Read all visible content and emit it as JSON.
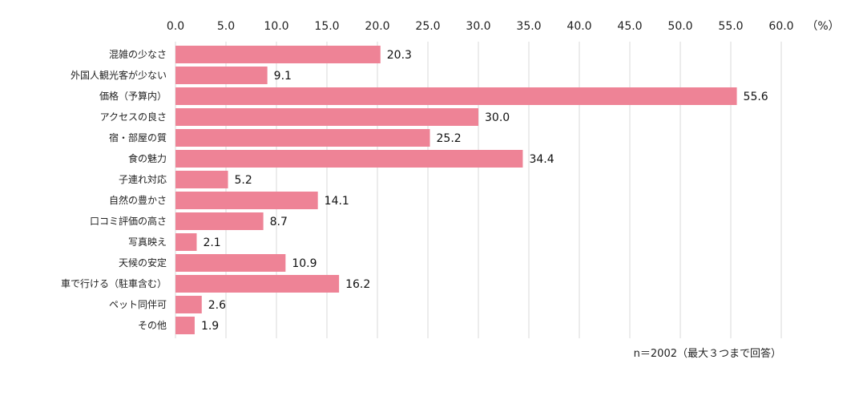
{
  "chart_data": {
    "type": "bar",
    "orientation": "horizontal",
    "unit_label": "（%）",
    "note": "n＝2002（最大３つまで回答）",
    "xlim": [
      0,
      60
    ],
    "xticks": [
      "0.0",
      "5.0",
      "10.0",
      "15.0",
      "20.0",
      "25.0",
      "30.0",
      "35.0",
      "40.0",
      "45.0",
      "50.0",
      "55.0",
      "60.0"
    ],
    "grid": true,
    "bar_color": "#ee8396",
    "categories": [
      "混雑の少なさ",
      "外国人観光客が少ない",
      "価格（予算内）",
      "アクセスの良さ",
      "宿・部屋の質",
      "食の魅力",
      "子連れ対応",
      "自然の豊かさ",
      "口コミ評価の高さ",
      "写真映え",
      "天候の安定",
      "車で行ける（駐車含む）",
      "ペット同伴可",
      "その他"
    ],
    "values": [
      20.3,
      9.1,
      55.6,
      30.0,
      25.2,
      34.4,
      5.2,
      14.1,
      8.7,
      2.1,
      10.9,
      16.2,
      2.6,
      1.9
    ],
    "value_labels": [
      "20.3",
      "9.1",
      "55.6",
      "30.0",
      "25.2",
      "34.4",
      "5.2",
      "14.1",
      "8.7",
      "2.1",
      "10.9",
      "16.2",
      "2.6",
      "1.9"
    ]
  }
}
